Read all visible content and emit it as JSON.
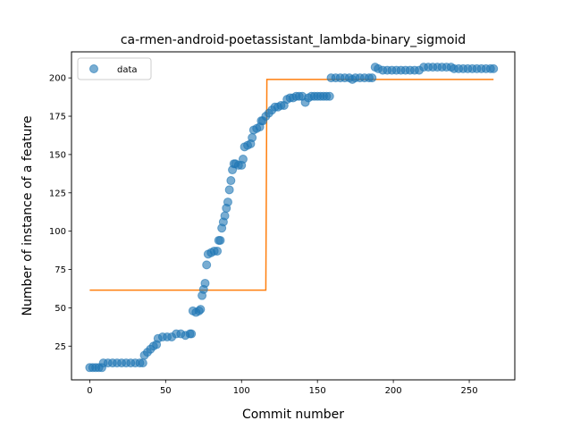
{
  "chart_data": {
    "type": "scatter",
    "title": "ca-rmen-android-poetassistant_lambda-binary_sigmoid",
    "xlabel": "Commit number",
    "ylabel": "Number of instance of a feature",
    "xlim": [
      -12,
      280
    ],
    "ylim": [
      3,
      217
    ],
    "xticks": [
      0,
      50,
      100,
      150,
      200,
      250
    ],
    "yticks": [
      25,
      50,
      75,
      100,
      125,
      150,
      175,
      200
    ],
    "grid": false,
    "legend": {
      "placement": "top-left",
      "entries": [
        "data"
      ]
    },
    "colors": {
      "data": "#1f77b4",
      "fit": "#ff7f0e"
    },
    "series": [
      {
        "name": "data",
        "kind": "scatter",
        "points": [
          [
            0,
            11
          ],
          [
            2,
            11
          ],
          [
            4,
            11
          ],
          [
            6,
            11
          ],
          [
            8,
            11
          ],
          [
            9,
            14
          ],
          [
            12,
            14
          ],
          [
            15,
            14
          ],
          [
            18,
            14
          ],
          [
            21,
            14
          ],
          [
            24,
            14
          ],
          [
            27,
            14
          ],
          [
            30,
            14
          ],
          [
            33,
            14
          ],
          [
            35,
            14
          ],
          [
            36,
            19
          ],
          [
            38,
            21
          ],
          [
            40,
            23
          ],
          [
            42,
            25
          ],
          [
            44,
            26
          ],
          [
            45,
            30
          ],
          [
            48,
            31
          ],
          [
            51,
            31
          ],
          [
            54,
            31
          ],
          [
            57,
            33
          ],
          [
            60,
            33
          ],
          [
            63,
            32
          ],
          [
            66,
            33
          ],
          [
            67,
            33
          ],
          [
            68,
            48
          ],
          [
            70,
            47
          ],
          [
            72,
            48
          ],
          [
            73,
            49
          ],
          [
            74,
            58
          ],
          [
            75,
            62
          ],
          [
            76,
            66
          ],
          [
            77,
            78
          ],
          [
            78,
            85
          ],
          [
            80,
            86
          ],
          [
            82,
            87
          ],
          [
            84,
            87
          ],
          [
            85,
            94
          ],
          [
            86,
            94
          ],
          [
            87,
            102
          ],
          [
            88,
            106
          ],
          [
            89,
            110
          ],
          [
            90,
            115
          ],
          [
            91,
            119
          ],
          [
            92,
            127
          ],
          [
            93,
            133
          ],
          [
            94,
            140
          ],
          [
            95,
            144
          ],
          [
            96,
            144
          ],
          [
            98,
            143
          ],
          [
            100,
            143
          ],
          [
            101,
            147
          ],
          [
            102,
            155
          ],
          [
            104,
            156
          ],
          [
            106,
            157
          ],
          [
            107,
            161
          ],
          [
            108,
            166
          ],
          [
            110,
            167
          ],
          [
            112,
            168
          ],
          [
            113,
            172
          ],
          [
            114,
            172
          ],
          [
            116,
            175
          ],
          [
            118,
            177
          ],
          [
            120,
            179
          ],
          [
            122,
            181
          ],
          [
            124,
            181
          ],
          [
            126,
            182
          ],
          [
            128,
            182
          ],
          [
            130,
            186
          ],
          [
            132,
            187
          ],
          [
            134,
            187
          ],
          [
            136,
            188
          ],
          [
            138,
            188
          ],
          [
            140,
            188
          ],
          [
            142,
            184
          ],
          [
            144,
            187
          ],
          [
            146,
            188
          ],
          [
            148,
            188
          ],
          [
            150,
            188
          ],
          [
            152,
            188
          ],
          [
            154,
            188
          ],
          [
            156,
            188
          ],
          [
            158,
            188
          ],
          [
            159,
            200
          ],
          [
            162,
            200
          ],
          [
            165,
            200
          ],
          [
            168,
            200
          ],
          [
            171,
            200
          ],
          [
            173,
            199
          ],
          [
            175,
            200
          ],
          [
            178,
            200
          ],
          [
            181,
            200
          ],
          [
            184,
            200
          ],
          [
            186,
            200
          ],
          [
            188,
            207
          ],
          [
            190,
            206
          ],
          [
            193,
            205
          ],
          [
            196,
            205
          ],
          [
            199,
            205
          ],
          [
            202,
            205
          ],
          [
            205,
            205
          ],
          [
            208,
            205
          ],
          [
            211,
            205
          ],
          [
            214,
            205
          ],
          [
            217,
            205
          ],
          [
            220,
            207
          ],
          [
            223,
            207
          ],
          [
            226,
            207
          ],
          [
            229,
            207
          ],
          [
            232,
            207
          ],
          [
            235,
            207
          ],
          [
            238,
            207
          ],
          [
            240,
            206
          ],
          [
            243,
            206
          ],
          [
            246,
            206
          ],
          [
            249,
            206
          ],
          [
            252,
            206
          ],
          [
            255,
            206
          ],
          [
            258,
            206
          ],
          [
            261,
            206
          ],
          [
            264,
            206
          ],
          [
            266,
            206
          ]
        ]
      },
      {
        "name": "",
        "kind": "line",
        "points": [
          [
            0,
            61.5
          ],
          [
            116,
            61.5
          ],
          [
            116.7,
            199
          ],
          [
            266,
            199
          ]
        ]
      }
    ]
  }
}
